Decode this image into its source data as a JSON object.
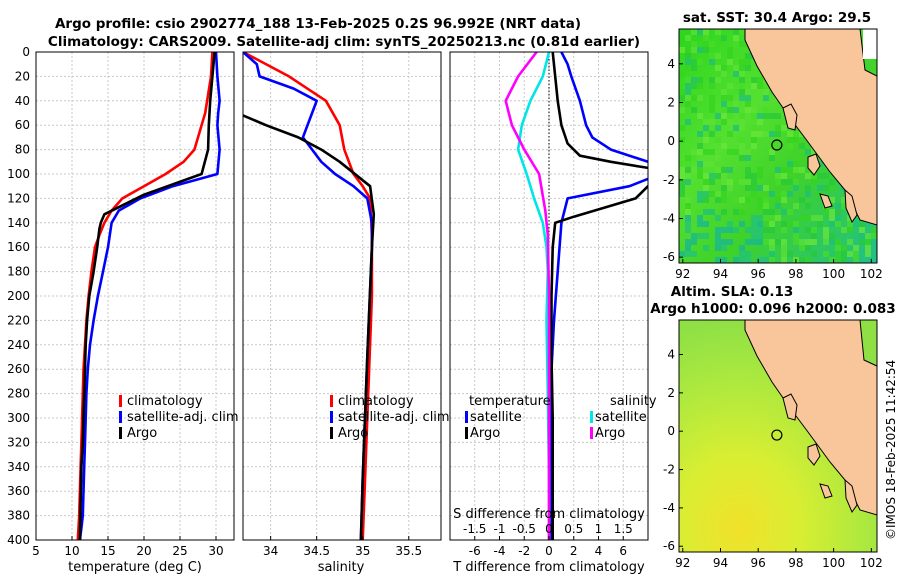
{
  "chart_data": {
    "type": "line",
    "title": {
      "line1": "Argo profile: csio 2902774_188 13-Feb-2025 0.2S 96.992E (NRT data)",
      "line2": "Climatology: CARS2009. Satellite-adj clim: synTS_20250213.nc (0.81d earlier)"
    },
    "depth_axis": {
      "ylim": [
        0,
        400
      ],
      "ticks": [
        0,
        20,
        40,
        60,
        80,
        100,
        120,
        140,
        160,
        180,
        200,
        220,
        240,
        260,
        280,
        300,
        320,
        340,
        360,
        380,
        400
      ]
    },
    "panels": [
      {
        "id": "temperature",
        "xlabel": "temperature (deg C)",
        "xlim": [
          5,
          32.5
        ],
        "xticks": [
          5,
          10,
          15,
          20,
          25,
          30
        ],
        "legend": [
          "climatology",
          "satellite-adj. clim",
          "Argo"
        ],
        "series": [
          {
            "name": "climatology",
            "color": "#ff0000",
            "x": [
              29.5,
              29.3,
              28.5,
              27,
              25.5,
              23,
              20,
              17,
              15.5,
              14.5,
              13.8,
              13.2,
              12.7,
              12.3,
              12,
              11.8,
              11.6,
              11.5,
              11.4,
              11.3,
              11.2,
              11.1,
              11.0,
              10.9,
              10.8
            ],
            "depth": [
              0,
              20,
              50,
              80,
              90,
              100,
              110,
              120,
              130,
              140,
              150,
              160,
              180,
              200,
              220,
              240,
              260,
              280,
              300,
              320,
              340,
              360,
              380,
              390,
              400
            ]
          },
          {
            "name": "satellite-adj. clim",
            "color": "#0000ff",
            "x": [
              30,
              30.2,
              30.5,
              30.3,
              30.2,
              30.5,
              30.2,
              24,
              19.5,
              16.5,
              15.5,
              15,
              14.3,
              13.6,
              13,
              12.5,
              12.2,
              12,
              11.9,
              11.8,
              11.7,
              11.6,
              11.5,
              11.3,
              11.1
            ],
            "depth": [
              0,
              20,
              40,
              50,
              60,
              80,
              100,
              110,
              120,
              130,
              140,
              160,
              180,
              200,
              220,
              240,
              260,
              280,
              300,
              320,
              340,
              360,
              380,
              390,
              400
            ]
          },
          {
            "name": "Argo",
            "color": "#000000",
            "x": [
              29.8,
              29.5,
              29.2,
              29,
              28.9,
              28,
              20,
              14.5,
              14,
              13.8,
              13.5,
              13,
              12.4,
              12.1,
              11.9,
              11.8,
              11.7,
              11.6,
              11.5,
              11.3,
              11.2,
              11.1
            ],
            "depth": [
              0,
              20,
              40,
              60,
              80,
              100,
              117,
              133,
              140,
              145,
              160,
              180,
              200,
              220,
              240,
              260,
              280,
              300,
              320,
              340,
              370,
              400
            ]
          }
        ]
      },
      {
        "id": "salinity",
        "xlabel": "salinity",
        "xlim": [
          33.7,
          35.85
        ],
        "xticks": [
          34,
          34.5,
          35,
          35.5
        ],
        "xticklabels": [
          "34",
          "34.5",
          "35",
          "35.5"
        ],
        "legend": [
          "climatology",
          "satellite-adj. clim",
          "Argo"
        ],
        "series": [
          {
            "name": "climatology",
            "color": "#ff0000",
            "x": [
              33.7,
              34.2,
              34.6,
              34.75,
              34.8,
              34.9,
              35,
              35.08,
              35.1,
              35.1,
              35.05,
              35.02,
              35.0
            ],
            "depth": [
              0,
              20,
              40,
              60,
              80,
              100,
              110,
              120,
              150,
              200,
              300,
              360,
              400
            ]
          },
          {
            "name": "satellite-adj. clim",
            "color": "#0000ff",
            "x": [
              33.7,
              33.85,
              33.88,
              34.25,
              34.5,
              34.45,
              34.35,
              34.55,
              34.7,
              34.9,
              35.05,
              35.1,
              35.1,
              35.05,
              35.0,
              34.98
            ],
            "depth": [
              0,
              10,
              20,
              30,
              40,
              50,
              70,
              90,
              100,
              110,
              120,
              140,
              160,
              250,
              350,
              400
            ]
          },
          {
            "name": "Argo",
            "color": "#000000",
            "x": [
              33.7,
              33.95,
              34.3,
              34.55,
              34.75,
              35.08,
              35.12,
              35.1,
              35.05,
              35.0,
              34.98
            ],
            "depth": [
              52,
              60,
              70,
              80,
              90,
              110,
              133,
              160,
              250,
              350,
              400
            ]
          }
        ]
      },
      {
        "id": "differences",
        "xlabel": "T difference from climatology",
        "xlabel_top": "S difference from climatology",
        "xlim": [
          -8,
          8
        ],
        "xticks": [
          -6,
          -4,
          -2,
          0,
          2,
          4,
          6
        ],
        "sxticks": [
          -1.5,
          -1,
          -0.5,
          0,
          0.5,
          1,
          1.5
        ],
        "sxticklabels": [
          "-1.5",
          "-1",
          "-0.5",
          "0",
          "0.5",
          "1",
          "1.5"
        ],
        "legend_heads": [
          "temperature",
          "salinity"
        ],
        "legend": [
          "satellite",
          "Argo",
          "satellite",
          "Argo"
        ],
        "series": [
          {
            "name": "T satellite",
            "color": "#0000ff",
            "x": [
              1,
              1.5,
              1.8,
              2.5,
              3,
              3.5,
              5,
              8,
              9,
              6.5,
              1.5,
              1,
              0.7,
              0.4,
              0.2,
              0.2,
              0.2,
              0.2
            ],
            "depth": [
              0,
              10,
              20,
              40,
              60,
              70,
              80,
              90,
              100,
              110,
              120,
              140,
              180,
              220,
              260,
              300,
              350,
              400
            ]
          },
          {
            "name": "T Argo",
            "color": "#000000",
            "x": [
              0.3,
              0.5,
              0.7,
              1,
              1.5,
              2.5,
              5,
              8,
              9,
              7,
              2,
              0.5,
              0.3,
              0.2,
              0.2,
              0.3,
              0.3
            ],
            "depth": [
              0,
              20,
              40,
              60,
              75,
              85,
              90,
              95,
              100,
              120,
              135,
              140,
              160,
              200,
              250,
              300,
              400
            ]
          },
          {
            "name": "S satellite",
            "color": "#00e5e5",
            "x": [
              0,
              -0.5,
              -1.5,
              -2.2,
              -2.5,
              -1.8,
              -1.2,
              -0.5,
              -0.2,
              -0.1,
              -0.2,
              -0.1,
              0,
              0
            ],
            "depth": [
              0,
              20,
              40,
              60,
              80,
              100,
              120,
              140,
              160,
              180,
              220,
              280,
              350,
              400
            ]
          },
          {
            "name": "S Argo",
            "color": "#ff00ff",
            "x": [
              -1,
              -2.5,
              -3.5,
              -3,
              -2.5,
              -2,
              -0.8,
              -0.3,
              -0.1,
              0,
              0,
              0
            ],
            "depth": [
              0,
              20,
              40,
              60,
              70,
              80,
              100,
              130,
              150,
              200,
              300,
              400
            ]
          }
        ]
      }
    ],
    "maps": [
      {
        "id": "sst",
        "title": "sat. SST: 30.4 Argo: 29.5",
        "xticks": [
          92,
          94,
          96,
          98,
          100,
          102
        ],
        "yticks": [
          4,
          2,
          0,
          -2,
          -4,
          -6
        ],
        "xlim": [
          91.8,
          102.3
        ],
        "ylim": [
          -6.3,
          5.8
        ],
        "argo_lon": 96.99,
        "argo_lat": -0.2
      },
      {
        "id": "sla",
        "title_line1": "Altim. SLA: 0.13",
        "title_line2": "Argo h1000: 0.096 h2000: 0.083",
        "xticks": [
          92,
          94,
          96,
          98,
          100,
          102
        ],
        "yticks": [
          4,
          2,
          0,
          -2,
          -4,
          -6
        ],
        "xlim": [
          91.8,
          102.3
        ],
        "ylim": [
          -6.3,
          5.8
        ],
        "argo_lon": 96.99,
        "argo_lat": -0.2
      }
    ],
    "credit": "©IMOS 18-Feb-2025 11:42:54"
  }
}
